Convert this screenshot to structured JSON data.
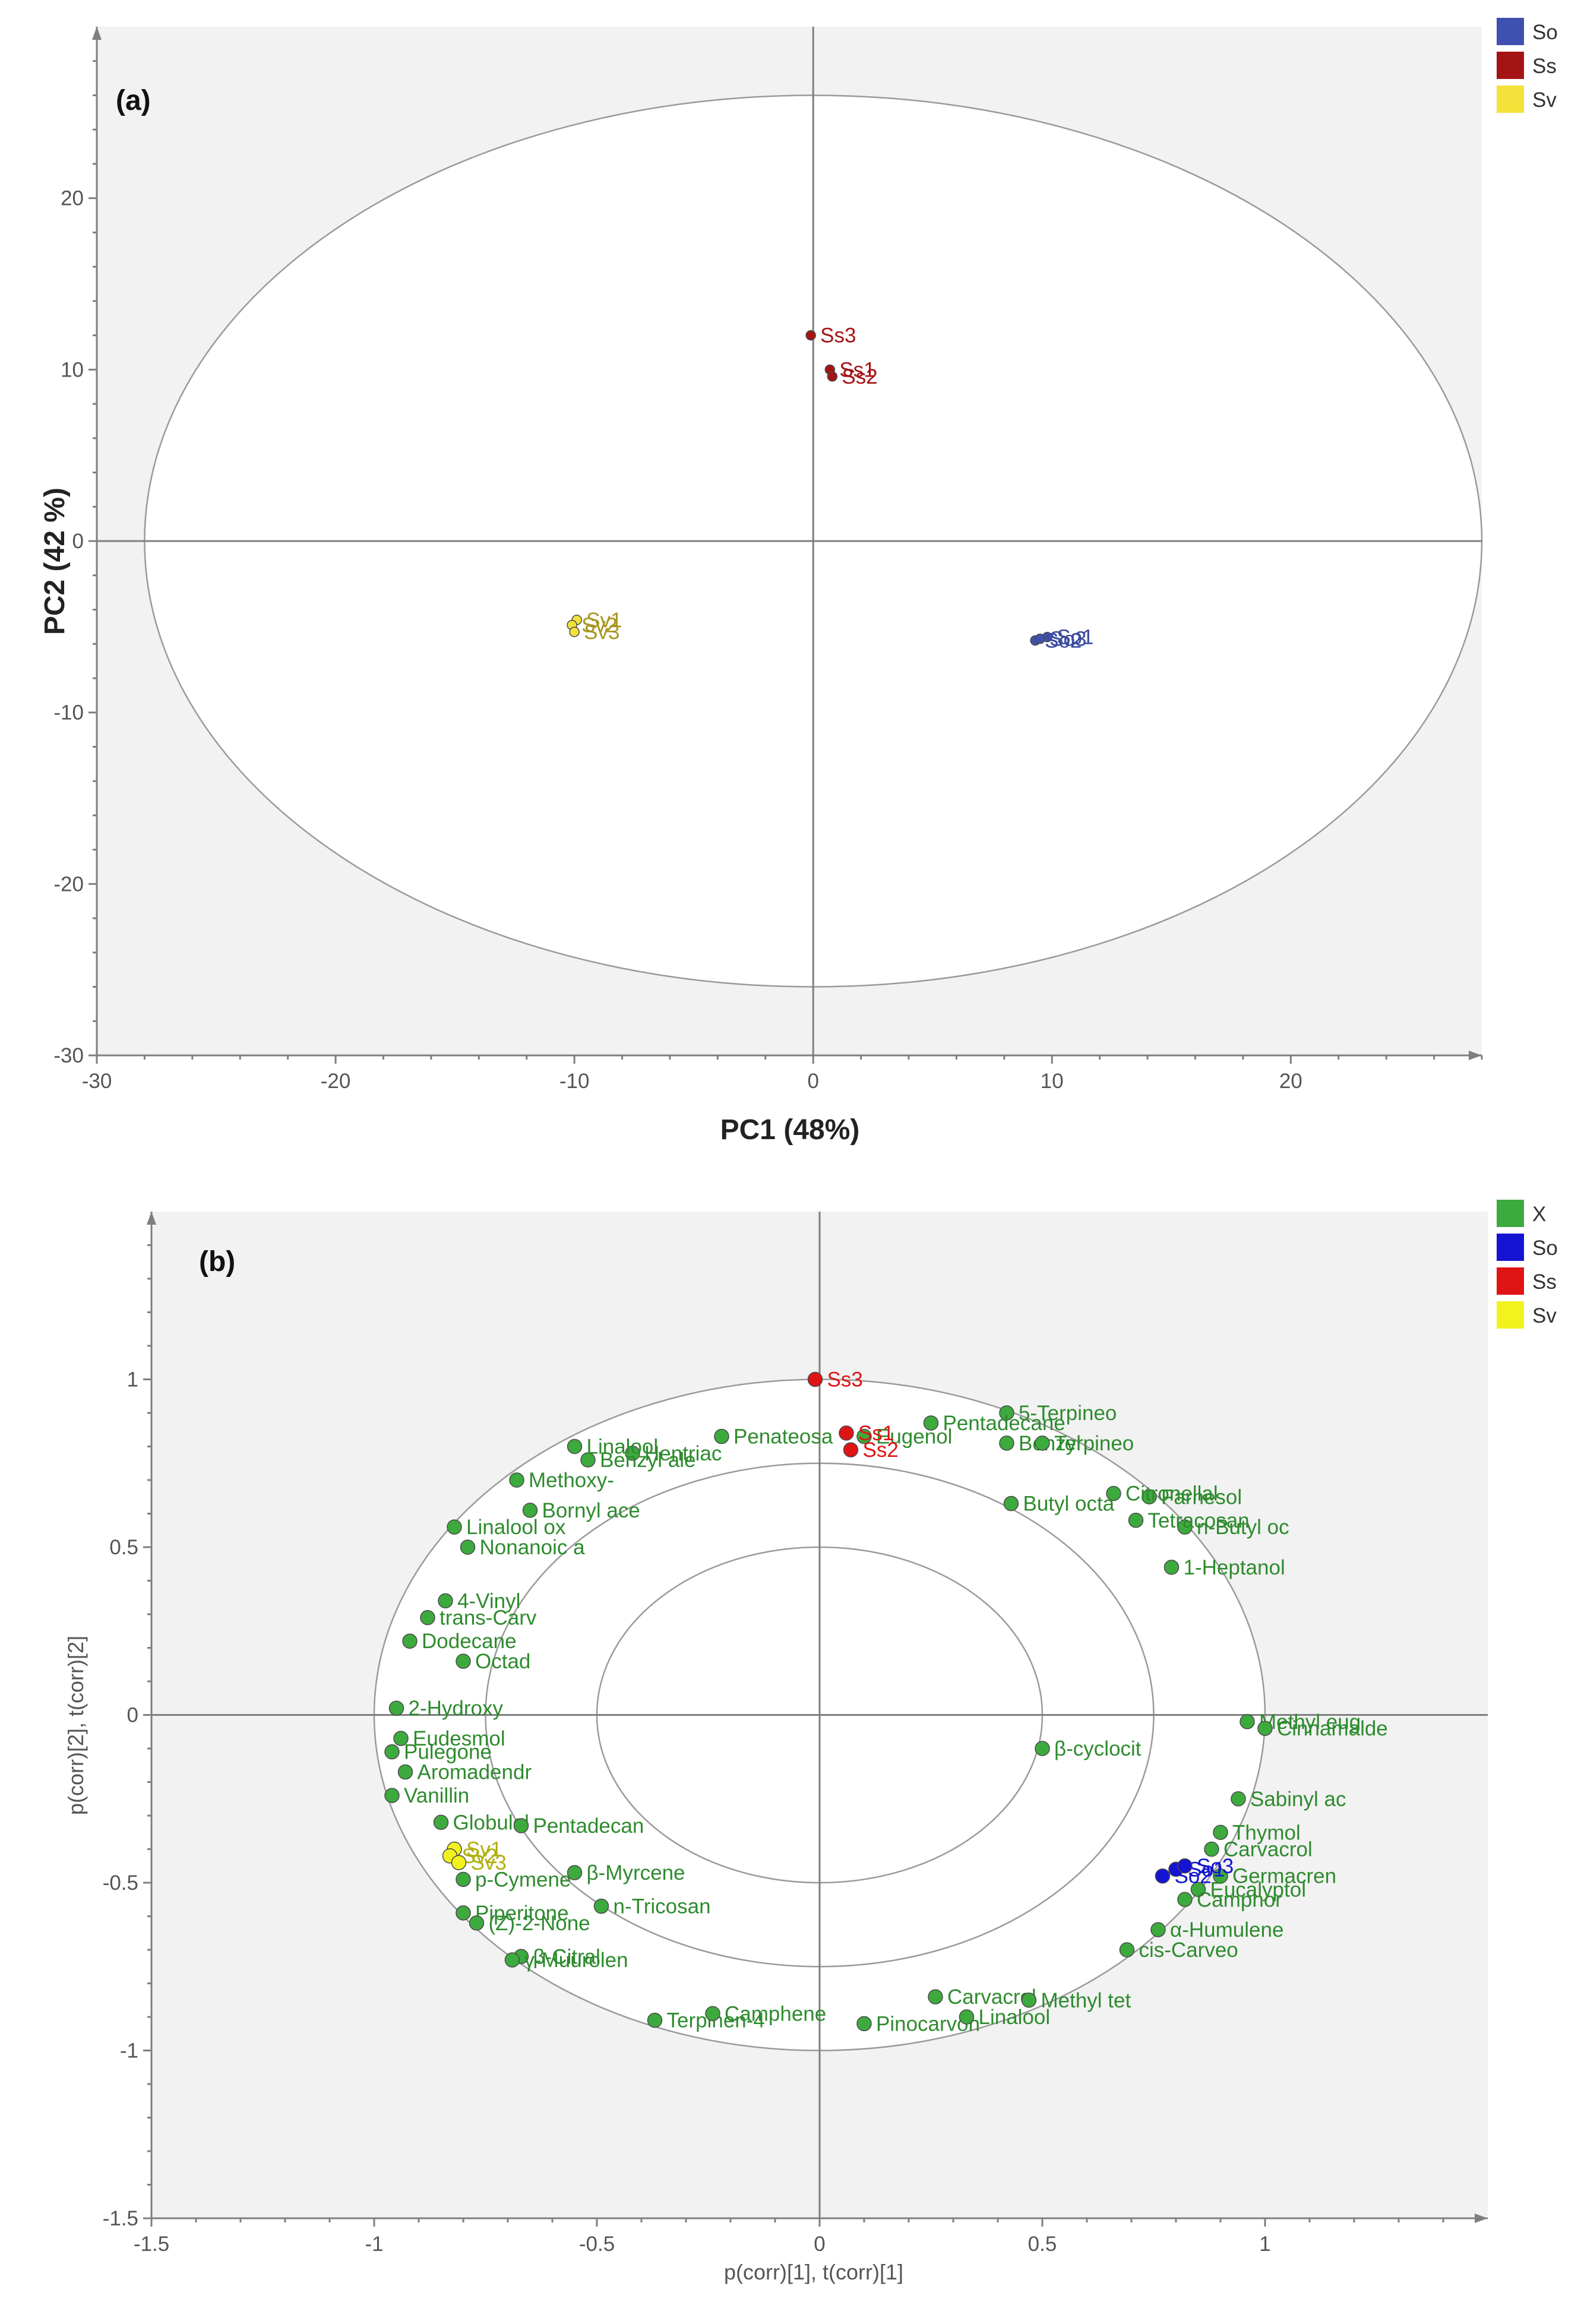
{
  "chart_data": [
    {
      "type": "scatter",
      "panel_label": "(a)",
      "xlabel": "PC1 (48%)",
      "ylabel": "PC2 (42 %)",
      "xlim": [
        -30,
        28
      ],
      "ylim": [
        -30,
        30
      ],
      "xticks": [
        -30,
        -20,
        -10,
        0,
        10,
        20
      ],
      "yticks": [
        -30,
        -20,
        -10,
        0,
        10,
        20
      ],
      "grid": false,
      "hotelling_ellipse": {
        "center": [
          0,
          0
        ],
        "radii": [
          28,
          26
        ]
      },
      "legend": {
        "position": "right-top",
        "entries": [
          {
            "name": "So",
            "color": "#4050b0"
          },
          {
            "name": "Ss",
            "color": "#a51414"
          },
          {
            "name": "Sv",
            "color": "#f2e23a"
          }
        ]
      },
      "series": [
        {
          "name": "So",
          "color": "#4050b0",
          "label_color": "#3a4aa0",
          "points": [
            {
              "label": "So1",
              "x": 9.8,
              "y": -5.6
            },
            {
              "label": "So2",
              "x": 9.3,
              "y": -5.8
            },
            {
              "label": "So3",
              "x": 9.5,
              "y": -5.7
            }
          ]
        },
        {
          "name": "Ss",
          "color": "#a51414",
          "label_color": "#a51414",
          "points": [
            {
              "label": "Ss1",
              "x": 0.7,
              "y": 10.0
            },
            {
              "label": "Ss2",
              "x": 0.8,
              "y": 9.6
            },
            {
              "label": "Ss3",
              "x": -0.1,
              "y": 12.0
            }
          ]
        },
        {
          "name": "Sv",
          "color": "#f2e23a",
          "label_color": "#a89620",
          "points": [
            {
              "label": "Sv1",
              "x": -9.9,
              "y": -4.6
            },
            {
              "label": "Sv2",
              "x": -10.1,
              "y": -4.9
            },
            {
              "label": "Sv3",
              "x": -10.0,
              "y": -5.3
            }
          ]
        }
      ]
    },
    {
      "type": "scatter",
      "panel_label": "(b)",
      "xlabel": "p(corr)[1], t(corr)[1]",
      "ylabel": "p(corr)[2], t(corr)[2]",
      "xlim": [
        -1.5,
        1.5
      ],
      "ylim": [
        -1.5,
        1.5
      ],
      "xticks": [
        -1.5,
        -1,
        -0.5,
        0,
        0.5,
        1
      ],
      "yticks": [
        -1.5,
        -1,
        -0.5,
        0,
        0.5,
        1
      ],
      "grid": false,
      "correlation_circles": [
        1.0,
        0.75,
        0.5
      ],
      "legend": {
        "position": "right-top",
        "entries": [
          {
            "name": "X",
            "color": "#3daa3d"
          },
          {
            "name": "So",
            "color": "#1414d2"
          },
          {
            "name": "Ss",
            "color": "#e01414"
          },
          {
            "name": "Sv",
            "color": "#f2f21e"
          }
        ]
      },
      "series": [
        {
          "name": "X",
          "color": "#3daa3d",
          "label_color": "#2e8b2e",
          "points": [
            {
              "label": "5-Terpineo",
              "x": 0.42,
              "y": 0.9
            },
            {
              "label": "Benzyl",
              "x": 0.42,
              "y": 0.81
            },
            {
              "label": "Terpineo",
              "x": 0.5,
              "y": 0.81
            },
            {
              "label": "Pentadecane",
              "x": 0.25,
              "y": 0.87
            },
            {
              "label": "Eugenol",
              "x": 0.1,
              "y": 0.83
            },
            {
              "label": "Penateosa",
              "x": -0.22,
              "y": 0.83
            },
            {
              "label": "Hentriac",
              "x": -0.42,
              "y": 0.78
            },
            {
              "label": "Benzyl ale",
              "x": -0.52,
              "y": 0.76
            },
            {
              "label": "Linalool",
              "x": -0.55,
              "y": 0.8
            },
            {
              "label": "Methoxy-",
              "x": -0.68,
              "y": 0.7
            },
            {
              "label": "Bornyl ace",
              "x": -0.65,
              "y": 0.61
            },
            {
              "label": "Linalool ox",
              "x": -0.82,
              "y": 0.56
            },
            {
              "label": "Nonanoic a",
              "x": -0.79,
              "y": 0.5
            },
            {
              "label": "4-Vinyl",
              "x": -0.84,
              "y": 0.34
            },
            {
              "label": "trans-Carv",
              "x": -0.88,
              "y": 0.29
            },
            {
              "label": "Dodecane",
              "x": -0.92,
              "y": 0.22
            },
            {
              "label": "Octad",
              "x": -0.8,
              "y": 0.16
            },
            {
              "label": "2-Hydroxy",
              "x": -0.95,
              "y": 0.02
            },
            {
              "label": "Eudesmol",
              "x": -0.94,
              "y": -0.07
            },
            {
              "label": "Pulegone",
              "x": -0.96,
              "y": -0.11
            },
            {
              "label": "Aromadendr",
              "x": -0.93,
              "y": -0.17
            },
            {
              "label": "Vanillin",
              "x": -0.96,
              "y": -0.24
            },
            {
              "label": "Globulol",
              "x": -0.85,
              "y": -0.32
            },
            {
              "label": "Pentadecan",
              "x": -0.67,
              "y": -0.33
            },
            {
              "label": "β-Myrcene",
              "x": -0.55,
              "y": -0.47
            },
            {
              "label": "p-Cymene",
              "x": -0.8,
              "y": -0.49
            },
            {
              "label": "n-Tricosan",
              "x": -0.49,
              "y": -0.57
            },
            {
              "label": "Piperitone",
              "x": -0.8,
              "y": -0.59
            },
            {
              "label": "(Z)-2-None",
              "x": -0.77,
              "y": -0.62
            },
            {
              "label": "β-Citral",
              "x": -0.67,
              "y": -0.72
            },
            {
              "label": "γ-Muurolen",
              "x": -0.69,
              "y": -0.73
            },
            {
              "label": "Terpinen-4",
              "x": -0.37,
              "y": -0.91
            },
            {
              "label": "Camphene",
              "x": -0.24,
              "y": -0.89
            },
            {
              "label": "Pinocarvon",
              "x": 0.1,
              "y": -0.92
            },
            {
              "label": "Linalool",
              "x": 0.33,
              "y": -0.9
            },
            {
              "label": "Carvacrol",
              "x": 0.26,
              "y": -0.84
            },
            {
              "label": "Methyl tet",
              "x": 0.47,
              "y": -0.85
            },
            {
              "label": "cis-Carveo",
              "x": 0.69,
              "y": -0.7
            },
            {
              "label": "α-Humulene",
              "x": 0.76,
              "y": -0.64
            },
            {
              "label": "Sabinyl ac",
              "x": 0.94,
              "y": -0.25
            },
            {
              "label": "Thymol",
              "x": 0.9,
              "y": -0.35
            },
            {
              "label": "Carvacrol",
              "x": 0.88,
              "y": -0.4
            },
            {
              "label": "Germacren",
              "x": 0.9,
              "y": -0.48
            },
            {
              "label": "Eucalyptol",
              "x": 0.85,
              "y": -0.52
            },
            {
              "label": "Camphor",
              "x": 0.82,
              "y": -0.55
            },
            {
              "label": "β-cyclocit",
              "x": 0.5,
              "y": -0.1
            },
            {
              "label": "Methyl eug",
              "x": 0.96,
              "y": -0.02
            },
            {
              "label": "Cinnamalde",
              "x": 1.0,
              "y": -0.04
            },
            {
              "label": "1-Heptanol",
              "x": 0.79,
              "y": 0.44
            },
            {
              "label": "n-Butyl oc",
              "x": 0.82,
              "y": 0.56
            },
            {
              "label": "Tetracosan",
              "x": 0.71,
              "y": 0.58
            },
            {
              "label": "Farnesol",
              "x": 0.74,
              "y": 0.65
            },
            {
              "label": "Citronellal",
              "x": 0.66,
              "y": 0.66
            },
            {
              "label": "Butyl octa",
              "x": 0.43,
              "y": 0.63
            }
          ]
        },
        {
          "name": "So",
          "color": "#1414d2",
          "label_color": "#1414d2",
          "points": [
            {
              "label": "So1",
              "x": 0.8,
              "y": -0.46
            },
            {
              "label": "So2",
              "x": 0.77,
              "y": -0.48
            },
            {
              "label": "So3",
              "x": 0.82,
              "y": -0.45
            }
          ]
        },
        {
          "name": "Ss",
          "color": "#e01414",
          "label_color": "#e01414",
          "points": [
            {
              "label": "Ss1",
              "x": 0.06,
              "y": 0.84
            },
            {
              "label": "Ss2",
              "x": 0.07,
              "y": 0.79
            },
            {
              "label": "Ss3",
              "x": -0.01,
              "y": 1.0
            }
          ]
        },
        {
          "name": "Sv",
          "color": "#f2f21e",
          "label_color": "#b0b010",
          "points": [
            {
              "label": "Sv1",
              "x": -0.82,
              "y": -0.4
            },
            {
              "label": "Sv2",
              "x": -0.83,
              "y": -0.42
            },
            {
              "label": "Sv3",
              "x": -0.81,
              "y": -0.44
            }
          ]
        }
      ]
    }
  ]
}
